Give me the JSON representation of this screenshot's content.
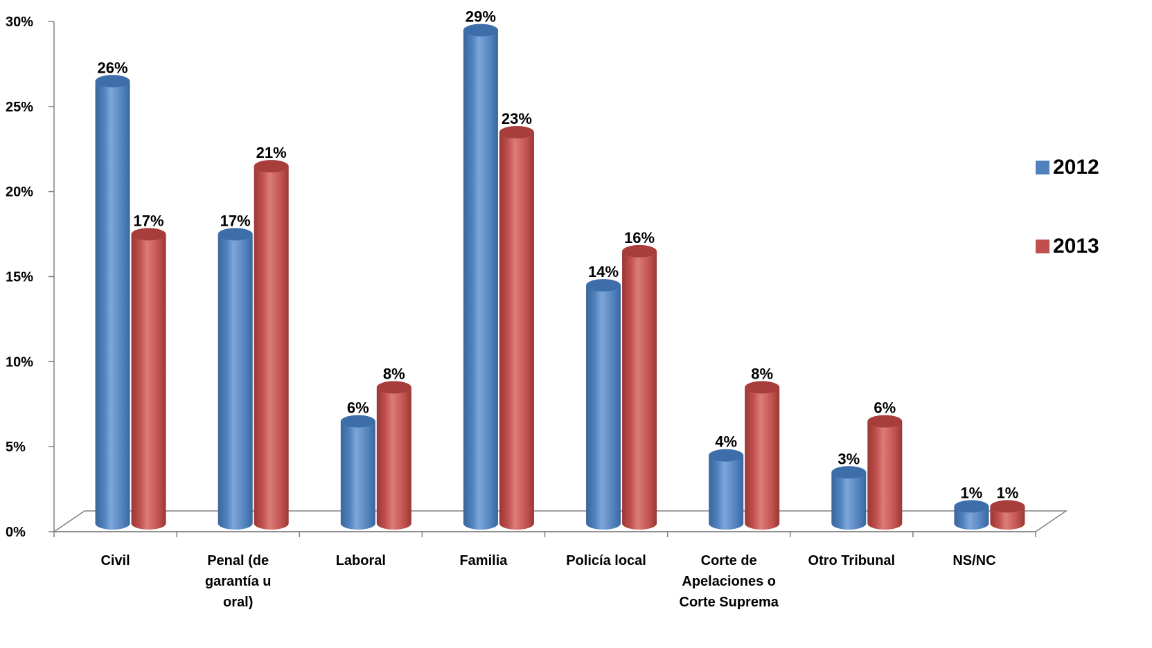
{
  "chart_data": {
    "type": "bar",
    "title": "",
    "xlabel": "",
    "ylabel": "",
    "ylim": [
      0,
      30
    ],
    "y_ticks": [
      "0%",
      "5%",
      "10%",
      "15%",
      "20%",
      "25%",
      "30%"
    ],
    "y_tick_values": [
      0,
      5,
      10,
      15,
      20,
      25,
      30
    ],
    "categories": [
      [
        "Civil"
      ],
      [
        "Penal (de",
        "garantía u",
        "oral)"
      ],
      [
        "Laboral"
      ],
      [
        "Familia"
      ],
      [
        "Policía local"
      ],
      [
        "Corte de",
        "Apelaciones o",
        "Corte Suprema"
      ],
      [
        "Otro Tribunal"
      ],
      [
        "NS/NC"
      ]
    ],
    "series": [
      {
        "name": "2012",
        "color": "#4f81bd",
        "values": [
          26,
          17,
          6,
          29,
          14,
          4,
          3,
          1
        ],
        "labels": [
          "26%",
          "17%",
          "6%",
          "29%",
          "14%",
          "4%",
          "3%",
          "1%"
        ]
      },
      {
        "name": "2013",
        "color": "#c0504d",
        "values": [
          17,
          21,
          8,
          23,
          16,
          8,
          6,
          1
        ],
        "labels": [
          "17%",
          "21%",
          "8%",
          "23%",
          "16%",
          "8%",
          "6%",
          "1%"
        ]
      }
    ],
    "legend_position": "right",
    "grid": false,
    "style": "3d-cylinder"
  }
}
